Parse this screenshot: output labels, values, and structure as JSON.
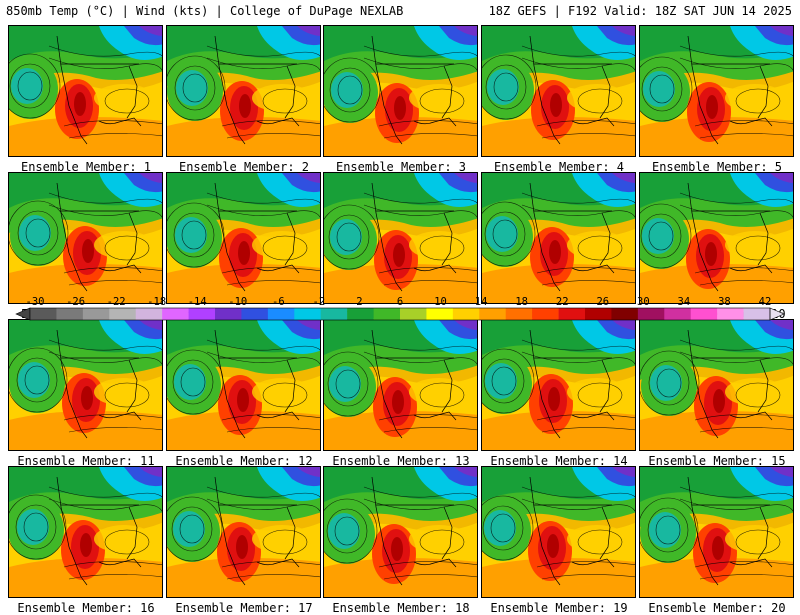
{
  "header": {
    "left_title": "850mb Temp (°C) | Wind (kts) | College of DuPage NEXLAB",
    "right_title": "18Z GEFS | F192 Valid: 18Z SAT JUN 14 2025"
  },
  "panels": [
    {
      "label": "Ensemble Member: 1"
    },
    {
      "label": "Ensemble Member: 2"
    },
    {
      "label": "Ensemble Member: 3"
    },
    {
      "label": "Ensemble Member: 4"
    },
    {
      "label": "Ensemble Member: 5"
    },
    {
      "label": "Ensemble Member: 6"
    },
    {
      "label": "Ensemble Member: 7"
    },
    {
      "label": "Ensemble Member: 8"
    },
    {
      "label": "Ensemble Member: 9"
    },
    {
      "label": "Ensemble Member: 10"
    },
    {
      "label": "Ensemble Member: 11"
    },
    {
      "label": "Ensemble Member: 12"
    },
    {
      "label": "Ensemble Member: 13"
    },
    {
      "label": "Ensemble Member: 14"
    },
    {
      "label": "Ensemble Member: 15"
    },
    {
      "label": "Ensemble Member: 16"
    },
    {
      "label": "Ensemble Member: 17"
    },
    {
      "label": "Ensemble Member: 18"
    },
    {
      "label": "Ensemble Member: 19"
    },
    {
      "label": "Ensemble Member: 20"
    }
  ],
  "colorbar": {
    "ticks": [
      "-30",
      "-26",
      "-22",
      "-18",
      "-14",
      "-10",
      "-6",
      "-2",
      "2",
      "6",
      "10",
      "14",
      "18",
      "22",
      "26",
      "30",
      "34",
      "38",
      "42"
    ],
    "colors": [
      "#5a5a5a",
      "#7a7a7a",
      "#999999",
      "#b5b5b5",
      "#d2b4de",
      "#e066ff",
      "#b040ff",
      "#7030c8",
      "#3050e0",
      "#1a8cff",
      "#00c8e6",
      "#18b8a0",
      "#18a038",
      "#40b828",
      "#a8d028",
      "#ffff00",
      "#ffd000",
      "#ffa000",
      "#ff7000",
      "#ff4000",
      "#e01010",
      "#b00000",
      "#800000",
      "#a01060",
      "#d030a0",
      "#ff50d0",
      "#ff90e8",
      "#d8c0e8"
    ]
  }
}
